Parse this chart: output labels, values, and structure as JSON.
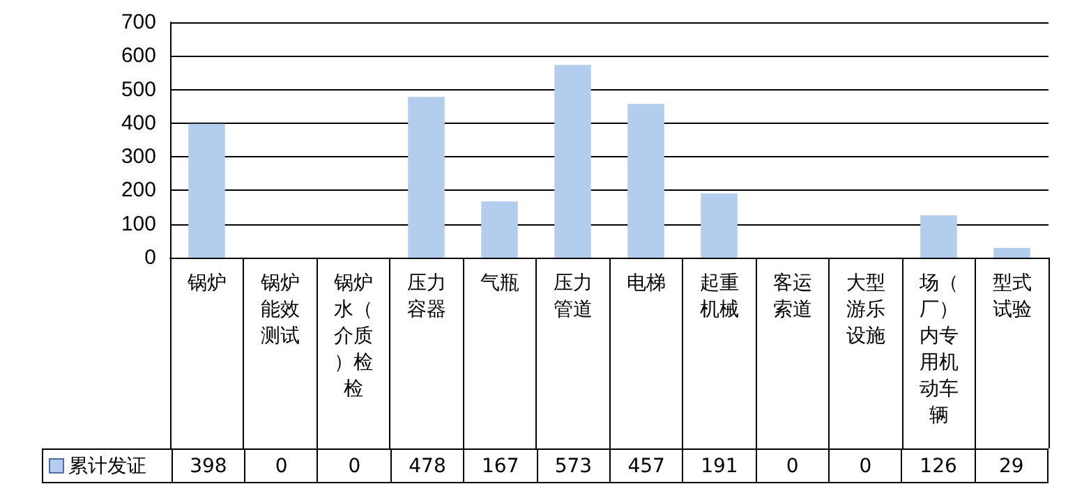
{
  "chart_data": {
    "type": "bar",
    "categories": [
      "锅炉",
      "锅炉能效测试",
      "锅炉水（介质）检检",
      "压力容器",
      "气瓶",
      "压力管道",
      "电梯",
      "起重机械",
      "客运索道",
      "大型游乐设施",
      "场（厂）内专用机动车辆",
      "型式试验"
    ],
    "series": [
      {
        "name": "累计发证",
        "color": "#b3cdee",
        "values": [
          398,
          0,
          0,
          478,
          167,
          573,
          457,
          191,
          0,
          0,
          126,
          29
        ]
      }
    ],
    "ylim": [
      0,
      700
    ],
    "yticks": [
      0,
      100,
      200,
      300,
      400,
      500,
      600,
      700
    ],
    "grid": "y",
    "legend": "bottom left",
    "data_labels": true
  }
}
